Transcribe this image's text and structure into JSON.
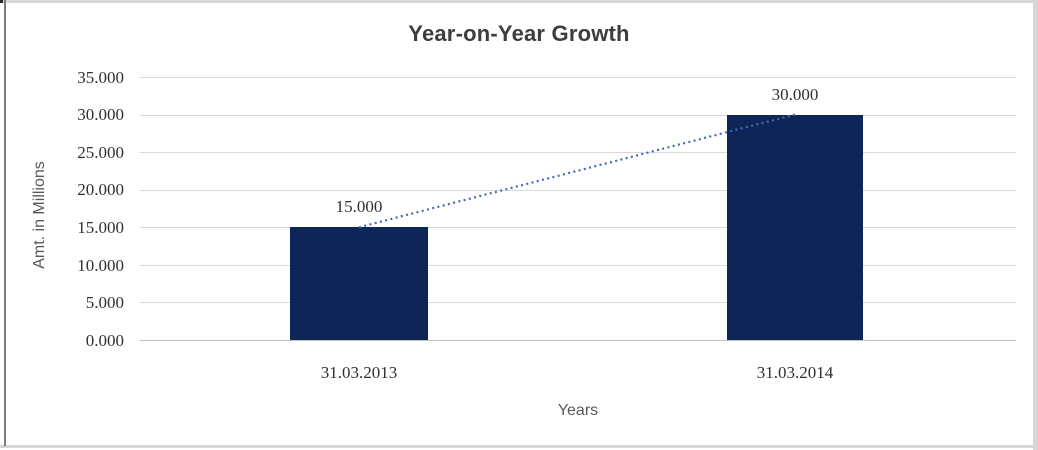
{
  "chart_data": {
    "type": "bar",
    "title": "Year-on-Year Growth",
    "xlabel": "Years",
    "ylabel": "Amt. in Millions",
    "categories": [
      "31.03.2013",
      "31.03.2014"
    ],
    "values": [
      15,
      30
    ],
    "data_labels": [
      "15.000",
      "30.000"
    ],
    "ytick_labels": [
      "35.000",
      "30.000",
      "25.000",
      "20.000",
      "15.000",
      "10.000",
      "5.000",
      "0.000"
    ],
    "ylim": [
      0,
      35
    ],
    "ytick_step": 5,
    "grid": true,
    "legend": "none",
    "trendline": {
      "style": "dotted",
      "color": "#3f6cb5",
      "from_value": 15,
      "to_value": 30
    },
    "colors": {
      "bar": "#0f2557",
      "gridline": "#d9d9d9",
      "axis_line": "#bfbfbf",
      "title_text": "#3d3d3d",
      "tick_text": "#2f2f2f",
      "axis_title_text": "#595959"
    }
  }
}
